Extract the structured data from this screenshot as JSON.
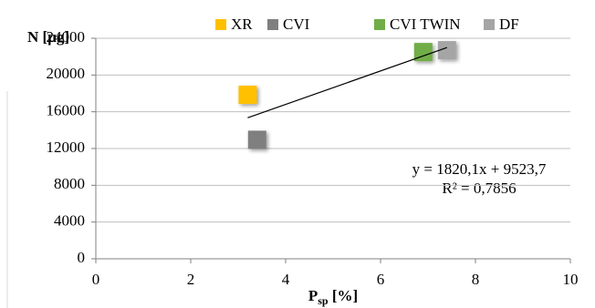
{
  "chart_data": {
    "type": "scatter",
    "y_label": "N [μg]",
    "x_label": "P",
    "x_label_sub": "sp",
    "x_label_unit": " [%]",
    "xlim": [
      0,
      10
    ],
    "xticks": [
      0,
      2,
      4,
      6,
      8,
      10
    ],
    "ylim": [
      0,
      24000
    ],
    "yticks": [
      0,
      4000,
      8000,
      12000,
      16000,
      20000,
      24000
    ],
    "grid": true,
    "legend": "top",
    "series": [
      {
        "name": "XR",
        "color": "#ffc000",
        "x": [
          3.2
        ],
        "values": [
          17850
        ]
      },
      {
        "name": "CVI",
        "color": "#7f7f7f",
        "x": [
          3.4
        ],
        "values": [
          12950
        ]
      },
      {
        "name": "CVI TWIN",
        "color": "#70ad47",
        "x": [
          6.9
        ],
        "values": [
          22500
        ]
      },
      {
        "name": "DF",
        "color": "#a5a5a5",
        "x": [
          7.4
        ],
        "values": [
          22700
        ]
      }
    ],
    "trendline": {
      "slope": 1820.1,
      "intercept": 9523.7,
      "x": [
        3.2,
        7.4
      ],
      "equation": "y = 1820,1x + 9523,7",
      "r2": "R² = 0,7856"
    }
  }
}
